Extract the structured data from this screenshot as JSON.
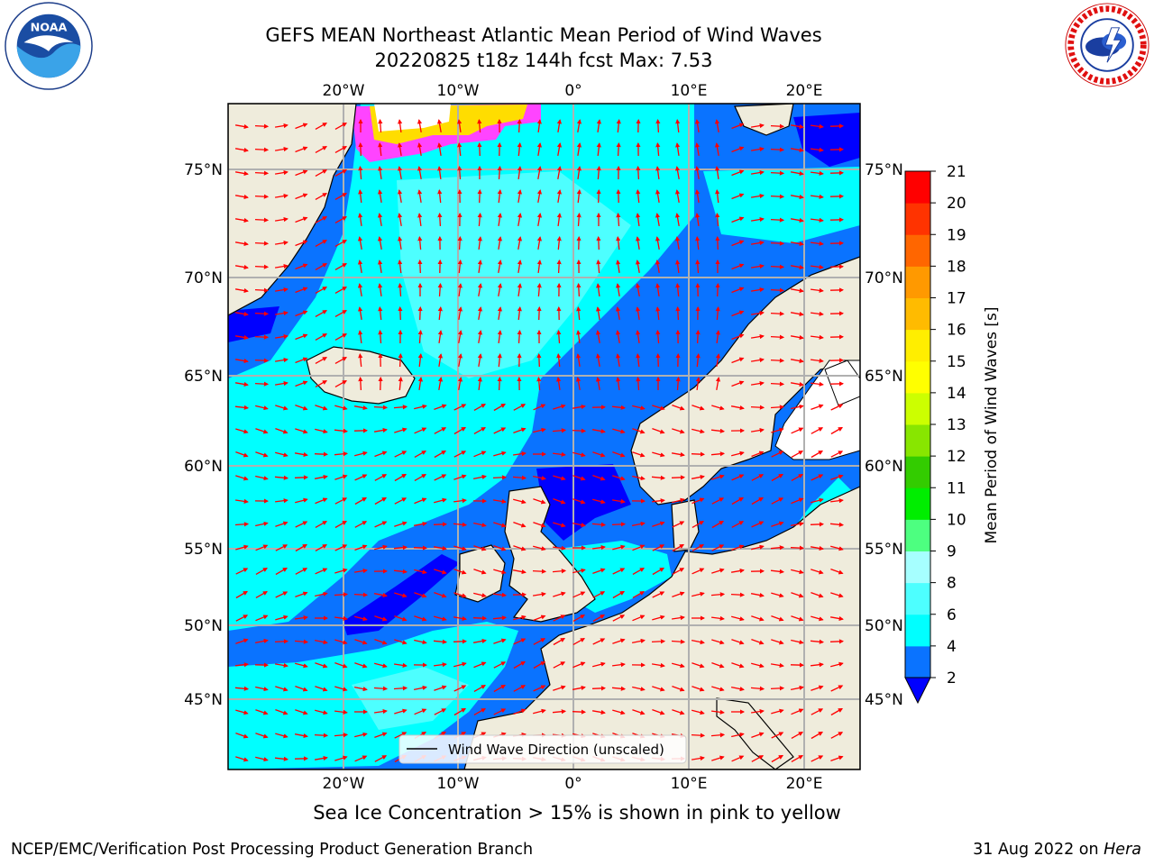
{
  "header": {
    "title_line1": "GEFS MEAN Northeast Atlantic Mean Period of Wind Waves",
    "title_line2": "20220825 t18z 144h fcst   Max: 7.53"
  },
  "logos": {
    "left": "noaa-logo",
    "right": "national-weather-service-logo"
  },
  "map": {
    "lon_ticks_top": [
      "20°W",
      "10°W",
      "0°",
      "10°E",
      "20°E"
    ],
    "lon_ticks_bottom": [
      "20°W",
      "10°W",
      "0°",
      "10°E",
      "20°E"
    ],
    "lat_ticks_left": [
      "75°N",
      "70°N",
      "65°N",
      "60°N",
      "55°N",
      "50°N",
      "45°N"
    ],
    "lat_ticks_right": [
      "75°N",
      "70°N",
      "65°N",
      "60°N",
      "55°N",
      "50°N",
      "45°N"
    ],
    "legend_label": "Wind Wave Direction (unscaled)",
    "arrow_color": "#ff0000",
    "land_color": "#efecdc",
    "ice_note_colors": [
      "#ff44ff",
      "#ffdd00"
    ]
  },
  "colorbar": {
    "label": "Mean Period of Wind Waves [s]",
    "ticks": [
      "2",
      "4",
      "6",
      "8",
      "9",
      "10",
      "11",
      "12",
      "13",
      "14",
      "15",
      "16",
      "17",
      "18",
      "19",
      "20",
      "21"
    ],
    "colors": [
      "#0a73ff",
      "#00ffff",
      "#4dffff",
      "#a6ffff",
      "#4dff80",
      "#00ee00",
      "#33cc00",
      "#88e600",
      "#ccff00",
      "#ffff00",
      "#ffee00",
      "#ffbb00",
      "#ff9900",
      "#ff6600",
      "#ff3300",
      "#ff0000"
    ],
    "underflow_color": "#0000ff"
  },
  "footer": {
    "caption": "Sea Ice Concentration > 15% is shown in pink to yellow",
    "left": "NCEP/EMC/Verification Post Processing Product Generation Branch",
    "right_prefix": "31 Aug 2022 on ",
    "right_host": "Hera"
  }
}
